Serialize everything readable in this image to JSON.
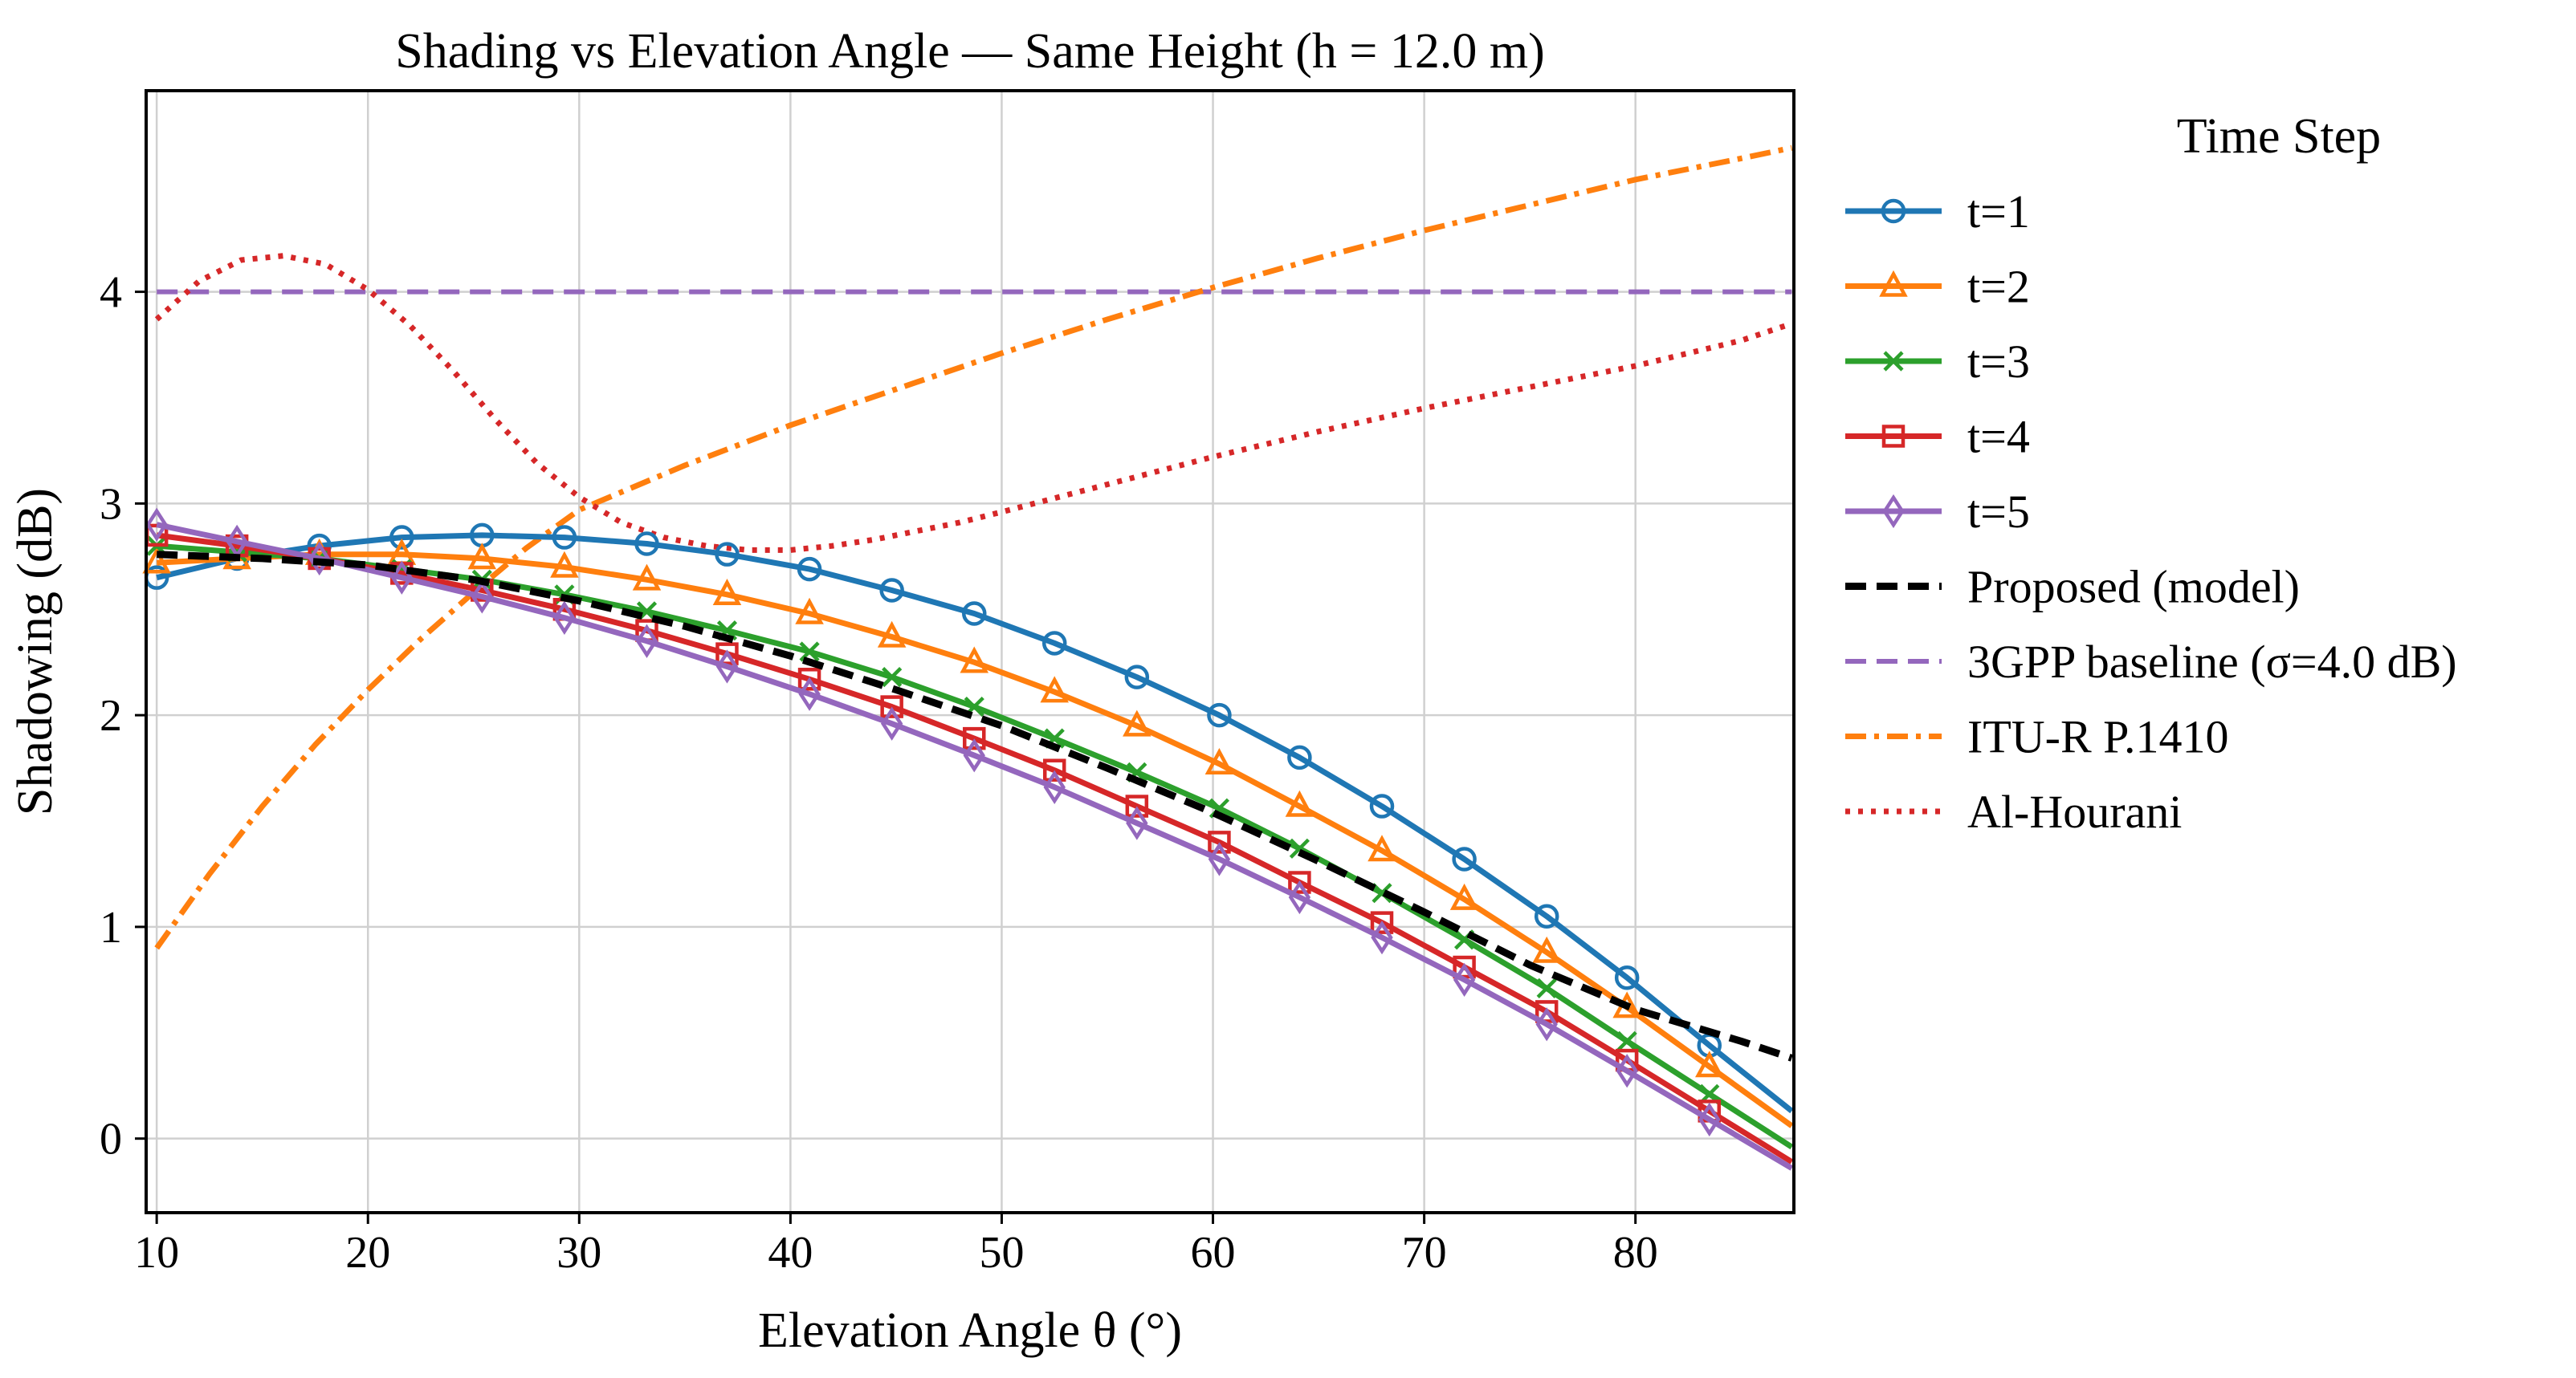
{
  "chart_data": {
    "type": "line",
    "title": "Shading vs Elevation Angle — Same Height (h = 12.0 m)",
    "xlabel": "Elevation Angle θ (°)",
    "ylabel": "Shadowing (dB)",
    "xlim": [
      9.5,
      87.5
    ],
    "ylim": [
      -0.35,
      4.95
    ],
    "xticks": [
      10,
      20,
      30,
      40,
      50,
      60,
      70,
      80
    ],
    "yticks": [
      0,
      1,
      2,
      3,
      4
    ],
    "grid": true,
    "legend_title": "Time Step",
    "legend_position": "outside-right",
    "series": [
      {
        "name": "t=1",
        "color": "#1f77b4",
        "style": "solid",
        "marker": "circle",
        "x": [
          10,
          13.8,
          17.7,
          21.6,
          25.4,
          29.3,
          33.2,
          37.0,
          40.9,
          44.8,
          48.7,
          52.5,
          56.4,
          60.3,
          64.1,
          68.0,
          71.9,
          75.8,
          79.6,
          83.5,
          87.4
        ],
        "y": [
          2.65,
          2.74,
          2.8,
          2.84,
          2.85,
          2.84,
          2.81,
          2.76,
          2.69,
          2.59,
          2.48,
          2.34,
          2.18,
          2.0,
          1.8,
          1.57,
          1.32,
          1.05,
          0.76,
          0.44,
          0.13
        ]
      },
      {
        "name": "t=2",
        "color": "#ff7f0e",
        "style": "solid",
        "marker": "triangle",
        "x": [
          10,
          13.8,
          17.7,
          21.6,
          25.4,
          29.3,
          33.2,
          37.0,
          40.9,
          44.8,
          48.7,
          52.5,
          56.4,
          60.3,
          64.1,
          68.0,
          71.9,
          75.8,
          79.6,
          83.5,
          87.4
        ],
        "y": [
          2.72,
          2.74,
          2.76,
          2.76,
          2.74,
          2.7,
          2.64,
          2.57,
          2.48,
          2.37,
          2.25,
          2.11,
          1.95,
          1.77,
          1.57,
          1.36,
          1.13,
          0.88,
          0.62,
          0.34,
          0.06
        ]
      },
      {
        "name": "t=3",
        "color": "#2ca02c",
        "style": "solid",
        "marker": "x",
        "x": [
          10,
          13.8,
          17.7,
          21.6,
          25.4,
          29.3,
          33.2,
          37.0,
          40.9,
          44.8,
          48.7,
          52.5,
          56.4,
          60.3,
          64.1,
          68.0,
          71.9,
          75.8,
          79.6,
          83.5,
          87.4
        ],
        "y": [
          2.8,
          2.77,
          2.74,
          2.69,
          2.64,
          2.57,
          2.49,
          2.4,
          2.3,
          2.18,
          2.04,
          1.89,
          1.73,
          1.56,
          1.37,
          1.16,
          0.94,
          0.71,
          0.46,
          0.21,
          -0.04
        ]
      },
      {
        "name": "t=4",
        "color": "#d62728",
        "style": "solid",
        "marker": "square",
        "x": [
          10,
          13.8,
          17.7,
          21.6,
          25.4,
          29.3,
          33.2,
          37.0,
          40.9,
          44.8,
          48.7,
          52.5,
          56.4,
          60.3,
          64.1,
          68.0,
          71.9,
          75.8,
          79.6,
          83.5,
          87.4
        ],
        "y": [
          2.85,
          2.8,
          2.74,
          2.67,
          2.59,
          2.5,
          2.4,
          2.29,
          2.17,
          2.04,
          1.89,
          1.74,
          1.57,
          1.4,
          1.21,
          1.02,
          0.81,
          0.6,
          0.37,
          0.13,
          -0.11
        ]
      },
      {
        "name": "t=5",
        "color": "#9467bd",
        "style": "solid",
        "marker": "diamond",
        "x": [
          10,
          13.8,
          17.7,
          21.6,
          25.4,
          29.3,
          33.2,
          37.0,
          40.9,
          44.8,
          48.7,
          52.5,
          56.4,
          60.3,
          64.1,
          68.0,
          71.9,
          75.8,
          79.6,
          83.5,
          87.4
        ],
        "y": [
          2.9,
          2.82,
          2.74,
          2.65,
          2.56,
          2.46,
          2.35,
          2.23,
          2.1,
          1.96,
          1.81,
          1.66,
          1.49,
          1.32,
          1.14,
          0.95,
          0.75,
          0.54,
          0.32,
          0.09,
          -0.14
        ]
      },
      {
        "name": "Proposed (model)",
        "color": "#000000",
        "style": "dashed",
        "marker": "none",
        "x": [
          10,
          15,
          20,
          25,
          30,
          35,
          40,
          45,
          50,
          55,
          60,
          65,
          70,
          75,
          80,
          85,
          87.4
        ],
        "y": [
          2.76,
          2.74,
          2.71,
          2.64,
          2.54,
          2.42,
          2.28,
          2.12,
          1.95,
          1.75,
          1.54,
          1.31,
          1.07,
          0.82,
          0.61,
          0.46,
          0.38
        ]
      },
      {
        "name": "3GPP baseline (σ=4.0 dB)",
        "color": "#9467bd",
        "style": "dashed",
        "marker": "none",
        "x": [
          10,
          87.4
        ],
        "y": [
          4.0,
          4.0
        ]
      },
      {
        "name": "ITU-R P.1410",
        "color": "#ff7f0e",
        "style": "dashdot",
        "marker": "none",
        "x": [
          10,
          12.5,
          15,
          17.5,
          20,
          22.5,
          25,
          27.5,
          30,
          35,
          40,
          45,
          50,
          55,
          60,
          65,
          70,
          75,
          80,
          85,
          87.4
        ],
        "y": [
          0.9,
          1.25,
          1.57,
          1.86,
          2.12,
          2.36,
          2.58,
          2.79,
          2.97,
          3.18,
          3.37,
          3.54,
          3.71,
          3.87,
          4.02,
          4.16,
          4.29,
          4.41,
          4.53,
          4.63,
          4.68
        ]
      },
      {
        "name": "Al-Hourani",
        "color": "#d62728",
        "style": "dotted",
        "marker": "none",
        "x": [
          10,
          12,
          14,
          16,
          18,
          20,
          22,
          24,
          26,
          28,
          30,
          32,
          34,
          36,
          38,
          40,
          42,
          44,
          46,
          48,
          50,
          55,
          60,
          65,
          70,
          75,
          80,
          85,
          87.4
        ],
        "y": [
          3.87,
          4.05,
          4.15,
          4.17,
          4.13,
          4.01,
          3.84,
          3.63,
          3.4,
          3.19,
          3.03,
          2.91,
          2.84,
          2.8,
          2.78,
          2.78,
          2.8,
          2.83,
          2.87,
          2.91,
          2.96,
          3.09,
          3.22,
          3.34,
          3.45,
          3.55,
          3.65,
          3.77,
          3.85
        ]
      }
    ]
  }
}
